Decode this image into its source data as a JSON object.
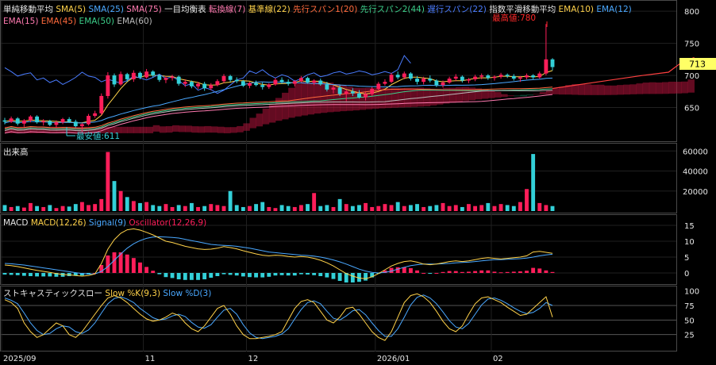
{
  "colors": {
    "background": "#000000",
    "panel_border": "#4a4a4a",
    "grid": "#202020",
    "up": "#ff1e5a",
    "down": "#33d0d8",
    "text": "#e6e6e6",
    "price_badge": "#ffff66"
  },
  "price_panel": {
    "legend_row1": [
      {
        "text": "単純移動平均",
        "color": "#e6e6e6"
      },
      {
        "text": "SMA(5)",
        "color": "#ffd24a"
      },
      {
        "text": "SMA(25)",
        "color": "#4aa8ff"
      },
      {
        "text": "SMA(75)",
        "color": "#ff7ab0"
      },
      {
        "text": "一目均衡表",
        "color": "#e6e6e6"
      },
      {
        "text": "転換線(7)",
        "color": "#ff7ab0"
      },
      {
        "text": "基準線(22)",
        "color": "#ffd24a"
      },
      {
        "text": "先行スパン1(20)",
        "color": "#ff6a3c"
      },
      {
        "text": "先行スパン2(44)",
        "color": "#3ccf8a"
      },
      {
        "text": "遅行スパン(22)",
        "color": "#4a7cff"
      },
      {
        "text": "指数平滑移動平均",
        "color": "#e6e6e6"
      },
      {
        "text": "EMA(10)",
        "color": "#ffd24a"
      },
      {
        "text": "EMA(12)",
        "color": "#4aa8ff"
      }
    ],
    "legend_row2": [
      {
        "text": "EMA(15)",
        "color": "#ff7ab0"
      },
      {
        "text": "EMA(45)",
        "color": "#ff6a3c"
      },
      {
        "text": "EMA(50)",
        "color": "#3ccf8a"
      },
      {
        "text": "EMA(60)",
        "color": "#bbbbbb"
      }
    ],
    "y_ticks": [
      800,
      750,
      700,
      650
    ],
    "current_price": "713",
    "high_label": "最高値:780",
    "low_label": "最安値:611"
  },
  "volume_panel": {
    "title": "出来高",
    "y_ticks": [
      "60000",
      "40000",
      "20000"
    ]
  },
  "macd_panel": {
    "legend": [
      {
        "text": "MACD",
        "color": "#e6e6e6"
      },
      {
        "text": "MACD(12,26)",
        "color": "#ffd24a"
      },
      {
        "text": "Signal(9)",
        "color": "#4aa8ff"
      },
      {
        "text": "Oscillator(12,26,9)",
        "color": "#ff1e5a"
      }
    ],
    "y_ticks": [
      "15",
      "10",
      "5",
      "0"
    ]
  },
  "stoch_panel": {
    "legend": [
      {
        "text": "ストキャスティックスロー",
        "color": "#e6e6e6"
      },
      {
        "text": "Slow %K(9,3)",
        "color": "#ffd24a"
      },
      {
        "text": "Slow %D(3)",
        "color": "#4aa8ff"
      }
    ],
    "y_ticks": [
      "100",
      "75",
      "50",
      "25"
    ]
  },
  "x_axis": {
    "labels": [
      "2025/09",
      "11",
      "12",
      "2026/01",
      "02"
    ]
  },
  "chart_data": {
    "type": "candlestick",
    "x_labels": [
      "2025/09",
      "11",
      "12",
      "2026/01",
      "02"
    ],
    "price_ylim": [
      600,
      810
    ],
    "price_high": 780,
    "price_low": 611,
    "last_close": 713,
    "candles_ohlc": [
      [
        630,
        634,
        624,
        628
      ],
      [
        628,
        636,
        626,
        633
      ],
      [
        633,
        635,
        622,
        625
      ],
      [
        625,
        632,
        620,
        630
      ],
      [
        630,
        638,
        627,
        636
      ],
      [
        636,
        638,
        625,
        627
      ],
      [
        627,
        632,
        622,
        629
      ],
      [
        629,
        631,
        621,
        623
      ],
      [
        623,
        630,
        619,
        627
      ],
      [
        627,
        634,
        624,
        632
      ],
      [
        632,
        635,
        626,
        628
      ],
      [
        628,
        631,
        619,
        621
      ],
      [
        621,
        626,
        611,
        624
      ],
      [
        624,
        640,
        622,
        637
      ],
      [
        637,
        645,
        634,
        641
      ],
      [
        641,
        672,
        638,
        668
      ],
      [
        668,
        705,
        664,
        700
      ],
      [
        700,
        703,
        682,
        686
      ],
      [
        686,
        706,
        684,
        702
      ],
      [
        702,
        704,
        690,
        694
      ],
      [
        694,
        708,
        690,
        704
      ],
      [
        704,
        706,
        694,
        697
      ],
      [
        697,
        710,
        695,
        706
      ],
      [
        706,
        708,
        697,
        700
      ],
      [
        700,
        702,
        690,
        693
      ],
      [
        693,
        699,
        688,
        696
      ],
      [
        696,
        701,
        692,
        698
      ],
      [
        698,
        700,
        684,
        687
      ],
      [
        687,
        694,
        682,
        690
      ],
      [
        690,
        692,
        680,
        683
      ],
      [
        683,
        690,
        679,
        687
      ],
      [
        687,
        690,
        676,
        680
      ],
      [
        680,
        688,
        677,
        685
      ],
      [
        685,
        694,
        683,
        691
      ],
      [
        691,
        702,
        688,
        699
      ],
      [
        699,
        701,
        690,
        693
      ],
      [
        693,
        697,
        688,
        691
      ],
      [
        691,
        693,
        682,
        684
      ],
      [
        684,
        690,
        680,
        688
      ],
      [
        688,
        692,
        683,
        685
      ],
      [
        685,
        689,
        678,
        682
      ],
      [
        682,
        688,
        679,
        686
      ],
      [
        686,
        696,
        684,
        693
      ],
      [
        693,
        697,
        687,
        690
      ],
      [
        690,
        694,
        684,
        687
      ],
      [
        687,
        693,
        683,
        691
      ],
      [
        691,
        699,
        689,
        696
      ],
      [
        696,
        698,
        687,
        689
      ],
      [
        689,
        694,
        685,
        692
      ],
      [
        692,
        695,
        684,
        686
      ],
      [
        686,
        690,
        675,
        678
      ],
      [
        678,
        684,
        672,
        681
      ],
      [
        681,
        685,
        668,
        671
      ],
      [
        671,
        678,
        660,
        675
      ],
      [
        675,
        680,
        668,
        672
      ],
      [
        672,
        677,
        664,
        666
      ],
      [
        666,
        674,
        661,
        671
      ],
      [
        671,
        682,
        668,
        679
      ],
      [
        679,
        690,
        676,
        687
      ],
      [
        687,
        694,
        684,
        690
      ],
      [
        690,
        704,
        688,
        701
      ],
      [
        701,
        706,
        694,
        697
      ],
      [
        697,
        706,
        694,
        703
      ],
      [
        703,
        705,
        692,
        695
      ],
      [
        695,
        699,
        686,
        690
      ],
      [
        690,
        698,
        686,
        695
      ],
      [
        695,
        700,
        689,
        692
      ],
      [
        692,
        694,
        682,
        685
      ],
      [
        685,
        692,
        681,
        689
      ],
      [
        689,
        698,
        687,
        695
      ],
      [
        695,
        702,
        691,
        698
      ],
      [
        698,
        700,
        689,
        692
      ],
      [
        692,
        696,
        688,
        694
      ],
      [
        694,
        701,
        691,
        698
      ],
      [
        698,
        703,
        694,
        700
      ],
      [
        700,
        702,
        693,
        696
      ],
      [
        696,
        700,
        692,
        698
      ],
      [
        698,
        704,
        695,
        701
      ],
      [
        701,
        703,
        696,
        699
      ],
      [
        699,
        702,
        692,
        695
      ],
      [
        695,
        699,
        690,
        697
      ],
      [
        697,
        703,
        694,
        700
      ],
      [
        700,
        702,
        694,
        697
      ],
      [
        697,
        706,
        695,
        703
      ],
      [
        703,
        780,
        700,
        725
      ],
      [
        725,
        727,
        708,
        713
      ]
    ],
    "series": [
      {
        "name": "SMA(5)",
        "color": "#ffd24a"
      },
      {
        "name": "SMA(25)",
        "color": "#4aa8ff"
      },
      {
        "name": "SMA(75)",
        "color": "#ff7ab0"
      },
      {
        "name": "EMA(45)",
        "color": "#ff6a3c"
      },
      {
        "name": "EMA(50)",
        "color": "#3ccf8a"
      },
      {
        "name": "EMA(60)",
        "color": "#bbbbbb"
      },
      {
        "name": "遅行スパン(22)",
        "color": "#4a7cff"
      }
    ],
    "volume": [
      6000,
      4000,
      5000,
      3500,
      8000,
      5000,
      4000,
      6000,
      3000,
      5000,
      4500,
      7000,
      9000,
      6000,
      7000,
      12000,
      59000,
      30000,
      20000,
      14000,
      10000,
      8000,
      9000,
      6000,
      5000,
      7000,
      4000,
      6000,
      5000,
      8000,
      4000,
      5000,
      7000,
      6000,
      5000,
      20000,
      6000,
      4000,
      5000,
      7000,
      9000,
      4000,
      3000,
      6000,
      5000,
      4000,
      6000,
      7000,
      18000,
      5000,
      6000,
      4000,
      12000,
      7000,
      5000,
      6000,
      8000,
      4000,
      5000,
      7000,
      6000,
      9000,
      5000,
      6000,
      7000,
      4000,
      5000,
      6000,
      8000,
      5000,
      6000,
      4000,
      7000,
      5000,
      6000,
      8000,
      5000,
      7000,
      6000,
      5000,
      9000,
      22000,
      57000,
      8000,
      6000,
      5000
    ],
    "volume_ylim": [
      0,
      65000
    ],
    "macd_ylim": [
      -3,
      17
    ],
    "macd": [
      2.5,
      2.3,
      2.0,
      1.6,
      1.2,
      0.8,
      0.5,
      0.2,
      -0.2,
      -0.5,
      -0.6,
      -0.8,
      -1.0,
      -0.8,
      -0.3,
      3.0,
      7.5,
      10.5,
      12.5,
      13.6,
      13.9,
      13.5,
      12.8,
      12.0,
      11.0,
      10.0,
      9.6,
      9.0,
      8.4,
      8.0,
      7.6,
      7.4,
      7.5,
      7.8,
      8.3,
      8.0,
      7.6,
      7.0,
      6.5,
      6.0,
      5.6,
      5.4,
      5.6,
      5.5,
      5.2,
      5.0,
      5.2,
      5.0,
      4.6,
      4.0,
      3.2,
      2.2,
      1.0,
      -0.2,
      -1.0,
      -1.6,
      -1.8,
      -1.2,
      -0.2,
      1.0,
      2.2,
      3.0,
      3.6,
      3.8,
      3.4,
      2.8,
      2.6,
      2.8,
      3.2,
      3.6,
      3.8,
      3.6,
      3.8,
      4.2,
      4.6,
      4.8,
      4.6,
      4.4,
      4.6,
      4.8,
      5.0,
      5.4,
      6.6,
      6.8,
      6.5,
      6.2
    ],
    "signal": [
      3.0,
      2.9,
      2.7,
      2.5,
      2.2,
      1.9,
      1.6,
      1.3,
      1.0,
      0.7,
      0.4,
      0.1,
      -0.2,
      -0.3,
      -0.3,
      0.5,
      2.0,
      4.0,
      6.0,
      7.8,
      9.2,
      10.2,
      10.9,
      11.3,
      11.4,
      11.3,
      11.2,
      11.0,
      10.6,
      10.2,
      9.8,
      9.4,
      9.0,
      8.8,
      8.7,
      8.6,
      8.4,
      8.1,
      7.8,
      7.4,
      7.0,
      6.6,
      6.4,
      6.2,
      6.0,
      5.8,
      5.6,
      5.5,
      5.3,
      5.0,
      4.6,
      4.1,
      3.5,
      2.8,
      2.0,
      1.2,
      0.6,
      0.2,
      0.0,
      0.2,
      0.6,
      1.2,
      1.8,
      2.3,
      2.6,
      2.8,
      2.8,
      2.8,
      2.9,
      3.0,
      3.2,
      3.3,
      3.4,
      3.6,
      3.8,
      4.0,
      4.2,
      4.2,
      4.3,
      4.4,
      4.5,
      4.7,
      5.0,
      5.4,
      5.7,
      5.9
    ],
    "oscillator": [
      -0.5,
      -0.6,
      -0.7,
      -0.9,
      -1.0,
      -1.1,
      -1.1,
      -1.1,
      -1.2,
      -1.2,
      -1.0,
      -0.9,
      -0.8,
      -0.5,
      0.0,
      2.5,
      5.5,
      6.5,
      6.5,
      5.8,
      4.7,
      3.3,
      1.9,
      0.7,
      -0.4,
      -1.3,
      -1.6,
      -2.0,
      -2.2,
      -2.2,
      -2.2,
      -2.0,
      -1.5,
      -1.0,
      -0.4,
      -0.6,
      -0.8,
      -1.1,
      -1.3,
      -1.4,
      -1.4,
      -1.2,
      -0.8,
      -0.7,
      -0.8,
      -0.8,
      -0.4,
      -0.5,
      -0.7,
      -1.0,
      -1.4,
      -1.9,
      -2.5,
      -3.0,
      -3.0,
      -2.8,
      -2.4,
      -1.4,
      -0.2,
      0.8,
      1.6,
      1.8,
      1.8,
      1.5,
      0.8,
      0.0,
      -0.2,
      0.0,
      0.3,
      0.6,
      0.6,
      0.3,
      0.4,
      0.6,
      0.8,
      0.8,
      0.4,
      0.2,
      0.3,
      0.4,
      0.5,
      0.7,
      1.6,
      1.4,
      0.8,
      0.3
    ],
    "stoch_ylim": [
      0,
      105
    ],
    "stoch_k": [
      85,
      80,
      70,
      45,
      30,
      20,
      25,
      35,
      45,
      40,
      25,
      20,
      30,
      45,
      60,
      75,
      88,
      92,
      88,
      80,
      70,
      60,
      52,
      48,
      50,
      55,
      62,
      58,
      45,
      35,
      30,
      40,
      55,
      70,
      75,
      60,
      40,
      25,
      18,
      18,
      20,
      22,
      25,
      30,
      50,
      70,
      82,
      85,
      80,
      65,
      50,
      45,
      55,
      70,
      72,
      60,
      45,
      30,
      20,
      15,
      30,
      55,
      80,
      92,
      95,
      90,
      80,
      65,
      48,
      35,
      30,
      40,
      60,
      78,
      88,
      90,
      85,
      80,
      72,
      65,
      58,
      60,
      70,
      80,
      90,
      55
    ],
    "stoch_d": [
      88,
      84,
      78,
      62,
      45,
      32,
      25,
      27,
      35,
      40,
      38,
      30,
      27,
      33,
      45,
      62,
      78,
      87,
      90,
      86,
      80,
      70,
      62,
      54,
      50,
      52,
      57,
      60,
      56,
      46,
      38,
      36,
      42,
      55,
      67,
      70,
      60,
      42,
      28,
      20,
      18,
      20,
      22,
      26,
      35,
      52,
      68,
      80,
      83,
      78,
      65,
      53,
      50,
      57,
      66,
      68,
      59,
      45,
      32,
      22,
      22,
      35,
      55,
      76,
      89,
      93,
      88,
      78,
      64,
      49,
      38,
      35,
      44,
      60,
      76,
      86,
      88,
      84,
      78,
      71,
      65,
      61,
      63,
      70,
      80,
      75
    ]
  }
}
